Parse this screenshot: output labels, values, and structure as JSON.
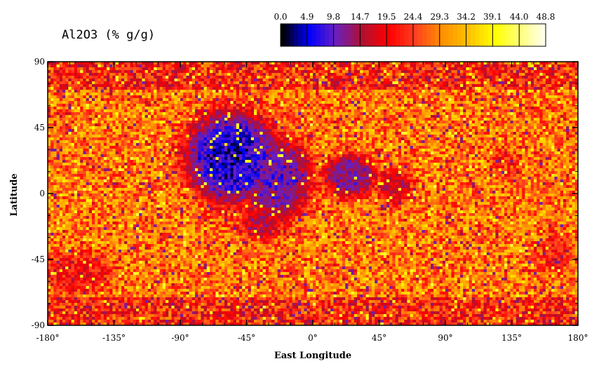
{
  "title": "Al2O3 (% g/g)",
  "colorbar": {
    "tick_labels": [
      "0.0",
      "4.9",
      "9.8",
      "14.7",
      "19.5",
      "24.4",
      "29.3",
      "34.2",
      "39.1",
      "44.0",
      "48.8"
    ],
    "range": [
      0.0,
      48.8
    ],
    "stops": [
      "#000000",
      "#0000ff",
      "#6a1fbf",
      "#b01030",
      "#ff0000",
      "#ff4020",
      "#ff9000",
      "#ffc000",
      "#ffff00",
      "#ffff80",
      "#ffffff"
    ]
  },
  "map": {
    "xlabel": "East Longitude",
    "ylabel": "Latitude",
    "x_ticks": [
      "-180°",
      "-135°",
      "-90°",
      "-45°",
      "0°",
      "45°",
      "90°",
      "135°",
      "180°"
    ],
    "y_ticks": [
      "90",
      "45",
      "0",
      "-45",
      "-90"
    ],
    "lon_range": [
      -180,
      180
    ],
    "lat_range": [
      -90,
      90
    ]
  },
  "chart_data": {
    "type": "heatmap",
    "title": "Al2O3 (% g/g)",
    "xlabel": "East Longitude",
    "ylabel": "Latitude",
    "xlim": [
      -180,
      180
    ],
    "ylim": [
      -90,
      90
    ],
    "value_range": [
      0.0,
      48.8
    ],
    "low_regions": [
      {
        "lon": -55,
        "lat": 25,
        "note": "lowest values ~0-10"
      },
      {
        "lon": 25,
        "lat": 12,
        "note": "low values ~5-15"
      },
      {
        "lon": 55,
        "lat": 5,
        "note": "low values ~10-20"
      }
    ],
    "typical_highland_value": 28
  }
}
